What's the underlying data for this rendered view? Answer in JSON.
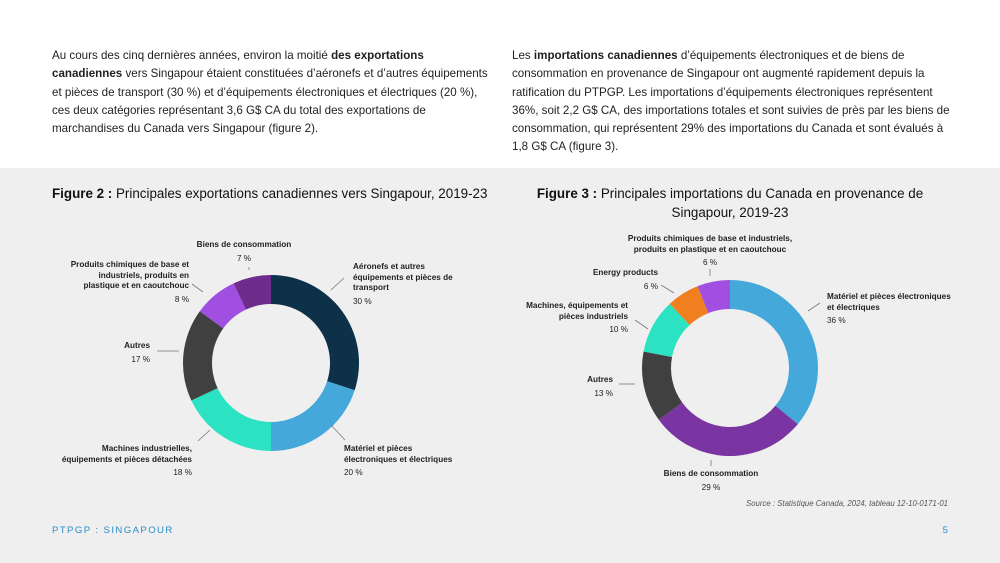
{
  "intro": {
    "left": {
      "t1": "Au cours des cinq dernières années, environ la moitié ",
      "b1": "des exportations canadiennes",
      "t2": " vers Singapour étaient constituées d’aéronefs et d’autres équipements et pièces de transport (30 %) et d’équipements électroniques et électriques (20 %), ces deux catégories représentant 3,6 G$ CA du total des exportations de marchandises du Canada vers Singapour (figure 2)."
    },
    "right": {
      "t1": "Les ",
      "b1": "importations canadiennes",
      "t2": " d’équipements électroniques et de biens de consommation en provenance de Singapour ont augmenté rapidement depuis la ratification du PTPGP. Les importations d’équipements électroniques représentent 36%, soit 2,2 G$ CA, des importations totales et sont suivies de près par les biens de consommation, qui représentent 29% des importations du Canada et sont évalués à 1,8 G$ CA (figure 3)."
    }
  },
  "fig2": {
    "label": "Figure 2 :",
    "title": " Principales exportations canadiennes vers Singapour, 2019-23"
  },
  "fig3": {
    "label": "Figure 3 :",
    "title": " Principales importations du Canada en provenance de Singapour, 2019-23"
  },
  "chart_data": [
    {
      "type": "pie",
      "donut": true,
      "title": "Principales exportations canadiennes vers Singapour, 2019-23",
      "slices": [
        {
          "label": "Aéronefs et autres équipements et pièces de transport",
          "value": 30,
          "display": "30 %",
          "color": "#0c3148"
        },
        {
          "label": "Matériel et pièces électroniques et électriques",
          "value": 20,
          "display": "20 %",
          "color": "#45a8db"
        },
        {
          "label": "Machines industrielles, équipements et pièces détachées",
          "value": 18,
          "display": "18 %",
          "color": "#2be3c2"
        },
        {
          "label": "Autres",
          "value": 17,
          "display": "17 %",
          "color": "#404040"
        },
        {
          "label": "Produits chimiques de base et industriels, produits en plastique et en caoutchouc",
          "value": 8,
          "display": "8 %",
          "color": "#a14fe0"
        },
        {
          "label": "Biens de consommation",
          "value": 7,
          "display": "7 %",
          "color": "#6d2d8c"
        }
      ]
    },
    {
      "type": "pie",
      "donut": true,
      "title": "Principales importations du Canada en provenance de Singapour, 2019-23",
      "slices": [
        {
          "label": "Matériel et pièces électroniques et électriques",
          "value": 36,
          "display": "36 %",
          "color": "#45a8db"
        },
        {
          "label": "Biens de consommation",
          "value": 29,
          "display": "29 %",
          "color": "#7a35a3"
        },
        {
          "label": "Autres",
          "value": 13,
          "display": "13 %",
          "color": "#404040"
        },
        {
          "label": "Machines, équipements et pièces industriels",
          "value": 10,
          "display": "10 %",
          "color": "#2be3c2"
        },
        {
          "label": "Energy products",
          "value": 6,
          "display": "6 %",
          "color": "#f07f1f"
        },
        {
          "label": "Produits chimiques de base et industriels, produits en plastique et en caoutchouc",
          "value": 6,
          "display": "6 %",
          "color": "#a14fe0"
        }
      ]
    }
  ],
  "source": "Source : Statistique Canada, 2024, tableau 12-10-0171-01",
  "footer": {
    "left": "PTPGP : SINGAPOUR",
    "page": "5"
  }
}
